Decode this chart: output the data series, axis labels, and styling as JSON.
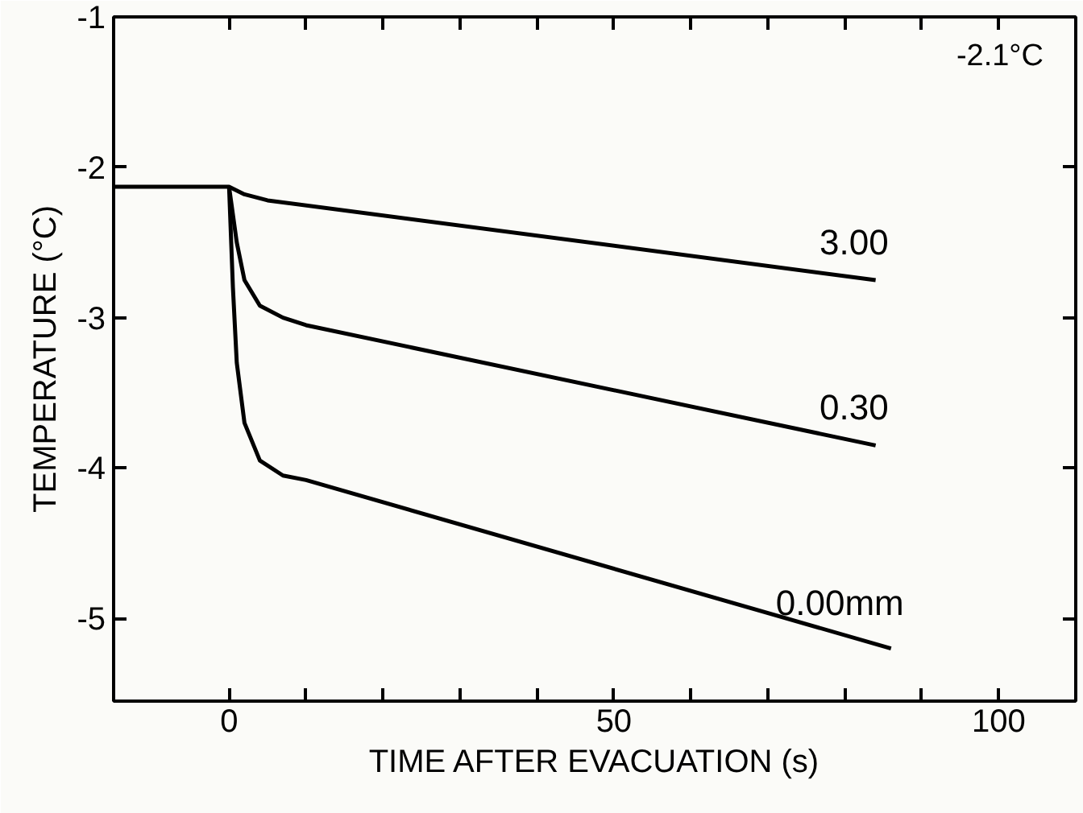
{
  "chart_data": {
    "type": "line",
    "xlabel": "TIME AFTER EVACUATION (s)",
    "ylabel": "TEMPERATURE (°C)",
    "annotations": [
      "-2.1°C"
    ],
    "xlim": [
      -15,
      110
    ],
    "ylim": [
      -5.55,
      -1
    ],
    "xticks": [
      0,
      {
        "value": 10,
        "label": null
      },
      {
        "value": 20,
        "label": null
      },
      {
        "value": 30,
        "label": null
      },
      {
        "value": 40,
        "label": null
      },
      50,
      {
        "value": 60,
        "label": null
      },
      {
        "value": 70,
        "label": null
      },
      {
        "value": 80,
        "label": null
      },
      {
        "value": 90,
        "label": null
      },
      100
    ],
    "yticks": [
      -1,
      -2,
      -3,
      -4,
      -5
    ],
    "grid": false,
    "marker": "none",
    "line_style": "solid",
    "series": [
      {
        "name": "3.00",
        "color": "#000000",
        "x": [
          -15,
          0,
          2,
          5,
          84
        ],
        "values": [
          -2.13,
          -2.13,
          -2.18,
          -2.22,
          -2.75
        ]
      },
      {
        "name": "0.30",
        "color": "#000000",
        "x": [
          0,
          1,
          2,
          4,
          7,
          10,
          84
        ],
        "values": [
          -2.13,
          -2.5,
          -2.75,
          -2.92,
          -3.0,
          -3.05,
          -3.85
        ]
      },
      {
        "name": "0.00mm",
        "color": "#000000",
        "x": [
          0,
          0.5,
          1,
          2,
          4,
          7,
          10,
          86
        ],
        "values": [
          -2.13,
          -2.8,
          -3.3,
          -3.7,
          -3.95,
          -4.05,
          -4.08,
          -5.2
        ]
      }
    ]
  }
}
